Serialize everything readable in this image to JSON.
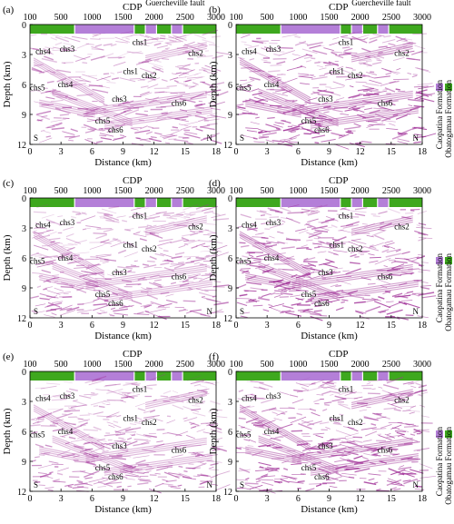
{
  "figure": {
    "top_axis_title": "CDP",
    "cdp_ticks": [
      "100",
      "500",
      "1000",
      "1500",
      "2000",
      "2500",
      "3000"
    ],
    "depth_label": "Depth (km)",
    "depth_ticks": [
      "0",
      "3",
      "6",
      "9",
      "12"
    ],
    "distance_label": "Distance (km)",
    "distance_ticks": [
      "0",
      "3",
      "6",
      "9",
      "12",
      "15",
      "18"
    ],
    "south_label": "S",
    "north_label": "N",
    "fault_label": "Guercheville fault",
    "formation_bar": [
      "green",
      "purple",
      "green",
      "purple",
      "green",
      "purple",
      "green"
    ]
  },
  "legend": {
    "items": [
      {
        "label": "Caopatina Formation",
        "color": "#b47fd8"
      },
      {
        "label": "Obatogamau Formation",
        "color": "#3ea81e"
      }
    ]
  },
  "colors": {
    "seismic": "#a2359a",
    "purple_bar": "#b47fd8",
    "green_bar": "#3ea81e"
  },
  "panels": [
    {
      "letter": "(a)",
      "labels": [
        {
          "text": "chs1"
        },
        {
          "text": "chs1"
        },
        {
          "text": "chs2"
        },
        {
          "text": "chs2"
        },
        {
          "text": "chs3"
        },
        {
          "text": "chs3"
        },
        {
          "text": "chs4"
        },
        {
          "text": "chs4"
        },
        {
          "text": "chs5"
        },
        {
          "text": "chs5"
        },
        {
          "text": "chs6"
        },
        {
          "text": "chs6"
        }
      ]
    },
    {
      "letter": "(b)",
      "labels": [
        {
          "text": "chs1"
        },
        {
          "text": "chs1"
        },
        {
          "text": "chs2"
        },
        {
          "text": "chs2"
        },
        {
          "text": "chs3"
        },
        {
          "text": "chs3"
        },
        {
          "text": "chs4"
        },
        {
          "text": "chs4"
        },
        {
          "text": "chs5"
        },
        {
          "text": "chs5"
        },
        {
          "text": "chs6"
        },
        {
          "text": "chs6"
        }
      ]
    },
    {
      "letter": "(c)",
      "labels": [
        {
          "text": "chs1"
        },
        {
          "text": "chs1"
        },
        {
          "text": "chs2"
        },
        {
          "text": "chs2"
        },
        {
          "text": "chs3"
        },
        {
          "text": "chs3"
        },
        {
          "text": "chs4"
        },
        {
          "text": "chs4"
        },
        {
          "text": "chs5"
        },
        {
          "text": "chs5"
        },
        {
          "text": "chs6"
        },
        {
          "text": "chs6"
        }
      ]
    },
    {
      "letter": "(d)",
      "labels": [
        {
          "text": "chs1"
        },
        {
          "text": "chs1"
        },
        {
          "text": "chs2"
        },
        {
          "text": "chs2"
        },
        {
          "text": "chs3"
        },
        {
          "text": "chs3"
        },
        {
          "text": "chs4"
        },
        {
          "text": "chs4"
        },
        {
          "text": "chs5"
        },
        {
          "text": "chs5"
        },
        {
          "text": "chs6"
        },
        {
          "text": "chs6"
        }
      ]
    },
    {
      "letter": "(e)",
      "labels": [
        {
          "text": "chs1"
        },
        {
          "text": "chs1"
        },
        {
          "text": "chs2"
        },
        {
          "text": "chs2"
        },
        {
          "text": "chs3"
        },
        {
          "text": "chs3"
        },
        {
          "text": "chs4"
        },
        {
          "text": "chs4"
        },
        {
          "text": "chs5"
        },
        {
          "text": "chs5"
        },
        {
          "text": "chs6"
        },
        {
          "text": "chs6"
        }
      ]
    },
    {
      "letter": "(f)",
      "labels": [
        {
          "text": "chs1"
        },
        {
          "text": "chs1"
        },
        {
          "text": "chs2"
        },
        {
          "text": "chs2"
        },
        {
          "text": "chs3"
        },
        {
          "text": "chs3"
        },
        {
          "text": "chs4"
        },
        {
          "text": "chs4"
        },
        {
          "text": "chs5"
        },
        {
          "text": "chs5"
        },
        {
          "text": "chs6"
        },
        {
          "text": "chs6"
        }
      ]
    }
  ]
}
